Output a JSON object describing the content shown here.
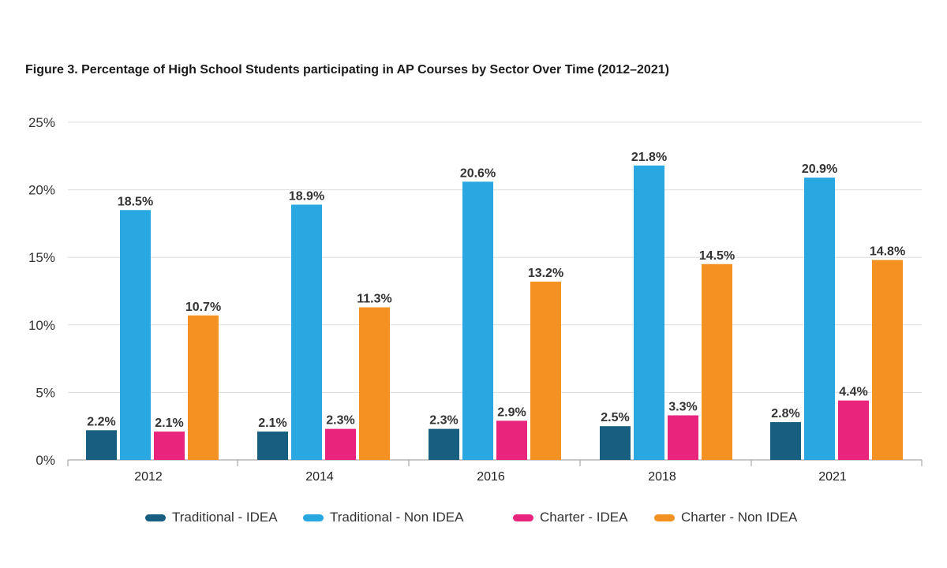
{
  "chart_data": {
    "type": "bar",
    "title": "Figure 3. Percentage of High School Students participating in AP Courses by Sector Over Time (2012–2021)",
    "categories": [
      "2012",
      "2014",
      "2016",
      "2018",
      "2021"
    ],
    "ylim": [
      0,
      25
    ],
    "yticks": [
      0,
      5,
      10,
      15,
      20,
      25
    ],
    "ytick_labels": [
      "0%",
      "5%",
      "10%",
      "15%",
      "20%",
      "25%"
    ],
    "grid": true,
    "legend_position": "bottom",
    "series": [
      {
        "name": "Traditional - IDEA",
        "color": "#175E80",
        "values": [
          2.2,
          2.1,
          2.3,
          2.5,
          2.8
        ],
        "labels": [
          "2.2%",
          "2.1%",
          "2.3%",
          "2.5%",
          "2.8%"
        ]
      },
      {
        "name": "Traditional - Non IDEA",
        "color": "#29A7E1",
        "values": [
          18.5,
          18.9,
          20.6,
          21.8,
          20.9
        ],
        "labels": [
          "18.5%",
          "18.9%",
          "20.6%",
          "21.8%",
          "20.9%"
        ]
      },
      {
        "name": "Charter - IDEA",
        "color": "#E9247D",
        "values": [
          2.1,
          2.3,
          2.9,
          3.3,
          4.4
        ],
        "labels": [
          "2.1%",
          "2.3%",
          "2.9%",
          "3.3%",
          "4.4%"
        ]
      },
      {
        "name": "Charter - Non IDEA",
        "color": "#F39222",
        "values": [
          10.7,
          11.3,
          13.2,
          14.5,
          14.8
        ],
        "labels": [
          "10.7%",
          "11.3%",
          "13.2%",
          "14.5%",
          "14.8%"
        ]
      }
    ]
  }
}
